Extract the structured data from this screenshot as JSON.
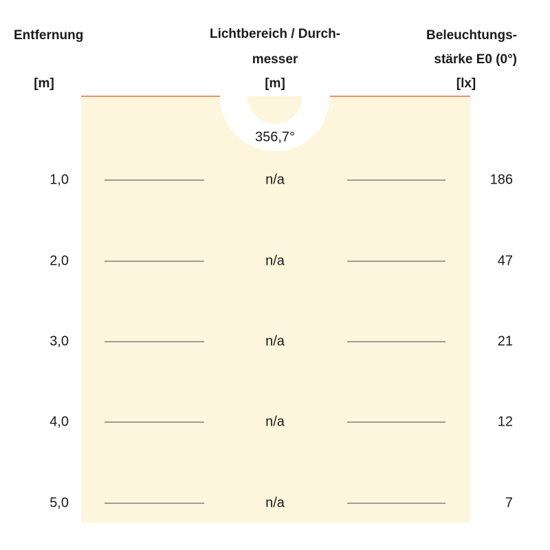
{
  "header": {
    "distance": {
      "title": "Entfernung",
      "unit": "[m]"
    },
    "diameter": {
      "title_lines": [
        "Lichtbereich / Durch-",
        "messer"
      ],
      "unit": "[m]"
    },
    "illuminance": {
      "title_lines": [
        "Beleuchtungs-",
        "stärke E0 (0°)"
      ],
      "unit": "[lx]"
    }
  },
  "beam_angle": "356,7°",
  "rows": [
    {
      "distance": "1,0",
      "diameter": "n/a",
      "illuminance": 186
    },
    {
      "distance": "2,0",
      "diameter": "n/a",
      "illuminance": 47
    },
    {
      "distance": "3,0",
      "diameter": "n/a",
      "illuminance": 21
    },
    {
      "distance": "4,0",
      "diameter": "n/a",
      "illuminance": 12
    },
    {
      "distance": "5,0",
      "diameter": "n/a",
      "illuminance": 7
    }
  ]
}
